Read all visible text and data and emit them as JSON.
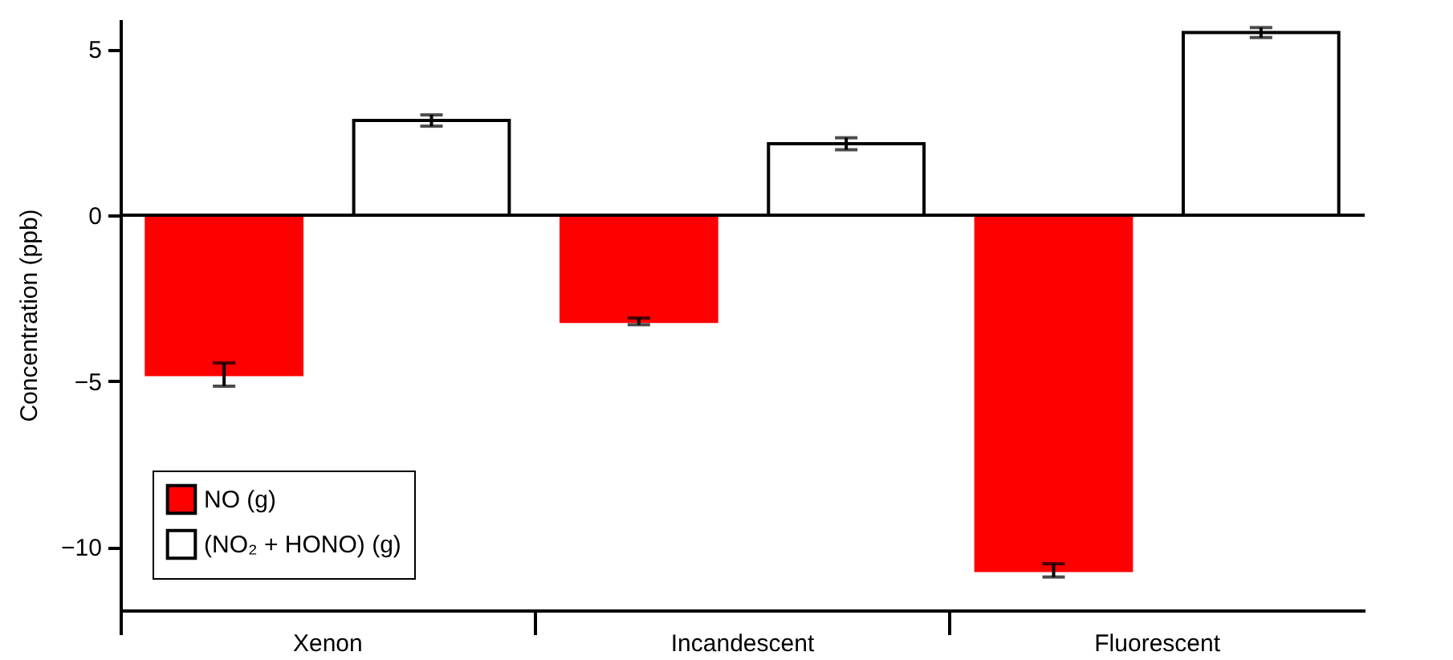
{
  "chart_data": {
    "type": "bar",
    "ylabel": "Concentration (ppb)",
    "categories": [
      "Xenon",
      "Incandescent",
      "Fluorescent"
    ],
    "series": [
      {
        "name": "NO (g)",
        "color": "#ff0000",
        "values": [
          -4.8,
          -3.2,
          -10.7
        ],
        "errors": [
          0.35,
          0.1,
          0.2
        ]
      },
      {
        "name": "(NO₂ + HONO) (g)",
        "color": "#ffffff",
        "values": [
          2.85,
          2.15,
          5.5
        ],
        "errors": [
          0.17,
          0.18,
          0.15
        ]
      }
    ],
    "ylim": [
      -11.9,
      5.9
    ],
    "yticks": [
      -10,
      -5,
      0,
      5
    ],
    "ref_lines": [
      {
        "axis": "y",
        "value": 0,
        "color": "#000000"
      }
    ],
    "grid": false,
    "legend": "bottom left"
  }
}
